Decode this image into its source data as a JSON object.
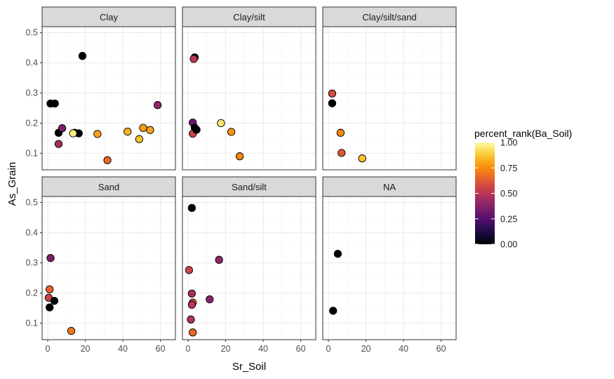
{
  "chart_data": {
    "type": "scatter",
    "xlabel": "Sr_Soil",
    "ylabel": "As_Grain",
    "xlim": [
      -3,
      68
    ],
    "ylim": [
      0.045,
      0.52
    ],
    "x_ticks": [
      0,
      20,
      40,
      60
    ],
    "y_ticks": [
      0.1,
      0.2,
      0.3,
      0.4,
      0.5
    ],
    "y_tick_labels": [
      "0.1",
      "0.2",
      "0.3",
      "0.4",
      "0.5"
    ],
    "grid": true,
    "legend": {
      "title": "percent_rank(Ba_Soil)",
      "position": "right",
      "breaks": [
        0.0,
        0.25,
        0.5,
        0.75,
        1.0
      ],
      "labels": [
        "0.00",
        "0.25",
        "0.50",
        "0.75",
        "1.00"
      ],
      "colormap": "inferno"
    },
    "panels": [
      {
        "label": "Clay",
        "points": [
          {
            "x": 18.5,
            "y": 0.423,
            "c": 0.0
          },
          {
            "x": 1.5,
            "y": 0.265,
            "c": 0.0
          },
          {
            "x": 3.8,
            "y": 0.265,
            "c": 0.0
          },
          {
            "x": 5.8,
            "y": 0.168,
            "c": 0.0
          },
          {
            "x": 7.7,
            "y": 0.183,
            "c": 0.35
          },
          {
            "x": 5.8,
            "y": 0.131,
            "c": 0.45
          },
          {
            "x": 14.3,
            "y": 0.168,
            "c": 0.0
          },
          {
            "x": 16.5,
            "y": 0.166,
            "c": 0.0
          },
          {
            "x": 13.5,
            "y": 0.166,
            "c": 0.96
          },
          {
            "x": 26.5,
            "y": 0.164,
            "c": 0.8
          },
          {
            "x": 31.8,
            "y": 0.077,
            "c": 0.66
          },
          {
            "x": 42.5,
            "y": 0.172,
            "c": 0.82
          },
          {
            "x": 48.7,
            "y": 0.147,
            "c": 0.86
          },
          {
            "x": 50.8,
            "y": 0.184,
            "c": 0.78
          },
          {
            "x": 54.5,
            "y": 0.177,
            "c": 0.8
          },
          {
            "x": 58.5,
            "y": 0.26,
            "c": 0.4
          }
        ]
      },
      {
        "label": "Clay/silt",
        "points": [
          {
            "x": 3.5,
            "y": 0.418,
            "c": 0.0
          },
          {
            "x": 3.0,
            "y": 0.413,
            "c": 0.5
          },
          {
            "x": 2.5,
            "y": 0.202,
            "c": 0.3
          },
          {
            "x": 3.5,
            "y": 0.185,
            "c": 0.0
          },
          {
            "x": 2.5,
            "y": 0.165,
            "c": 0.55
          },
          {
            "x": 4.5,
            "y": 0.178,
            "c": 0.0
          },
          {
            "x": 17.5,
            "y": 0.2,
            "c": 0.95
          },
          {
            "x": 23.0,
            "y": 0.171,
            "c": 0.76
          },
          {
            "x": 27.5,
            "y": 0.09,
            "c": 0.74
          }
        ]
      },
      {
        "label": "Clay/silt/sand",
        "points": [
          {
            "x": 2.0,
            "y": 0.298,
            "c": 0.58
          },
          {
            "x": 2.0,
            "y": 0.266,
            "c": 0.0
          },
          {
            "x": 6.5,
            "y": 0.168,
            "c": 0.74
          },
          {
            "x": 7.0,
            "y": 0.101,
            "c": 0.62
          },
          {
            "x": 18.0,
            "y": 0.083,
            "c": 0.86
          }
        ]
      },
      {
        "label": "Sand",
        "points": [
          {
            "x": 1.5,
            "y": 0.316,
            "c": 0.35
          },
          {
            "x": 1.0,
            "y": 0.212,
            "c": 0.65
          },
          {
            "x": 0.5,
            "y": 0.184,
            "c": 0.55
          },
          {
            "x": 3.5,
            "y": 0.174,
            "c": 0.0
          },
          {
            "x": 1.0,
            "y": 0.152,
            "c": 0.0
          },
          {
            "x": 12.5,
            "y": 0.074,
            "c": 0.7
          }
        ]
      },
      {
        "label": "Sand/silt",
        "points": [
          {
            "x": 2.0,
            "y": 0.482,
            "c": 0.0
          },
          {
            "x": 0.5,
            "y": 0.276,
            "c": 0.56
          },
          {
            "x": 16.5,
            "y": 0.31,
            "c": 0.4
          },
          {
            "x": 2.0,
            "y": 0.198,
            "c": 0.45
          },
          {
            "x": 11.5,
            "y": 0.179,
            "c": 0.38
          },
          {
            "x": 2.5,
            "y": 0.168,
            "c": 0.62
          },
          {
            "x": 2.0,
            "y": 0.161,
            "c": 0.5
          },
          {
            "x": 1.5,
            "y": 0.112,
            "c": 0.48
          },
          {
            "x": 2.5,
            "y": 0.069,
            "c": 0.66
          }
        ]
      },
      {
        "label": "NA",
        "points": [
          {
            "x": 5.0,
            "y": 0.33,
            "c": 0.0
          },
          {
            "x": 2.5,
            "y": 0.141,
            "c": 0.0
          }
        ]
      }
    ]
  }
}
